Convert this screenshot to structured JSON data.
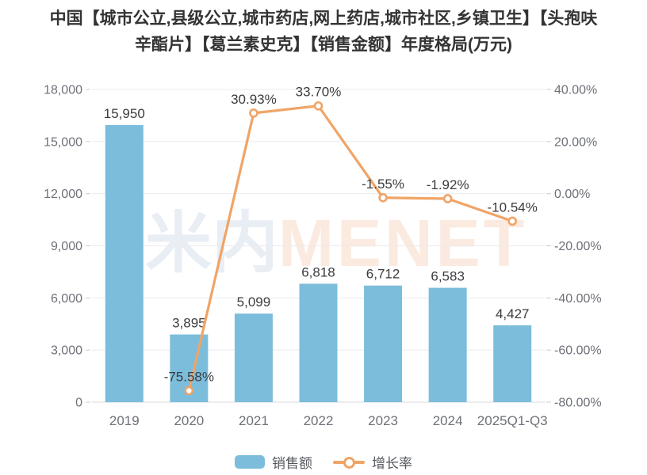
{
  "title": "中国【城市公立,县级公立,城市药店,网上药店,城市社区,乡镇卫生】【头孢呋辛酯片】【葛兰素史克】【销售金额】年度格局(万元)",
  "watermark": {
    "part1": "米内",
    "part2": "MENET"
  },
  "colors": {
    "bar": "#7CBDDB",
    "line": "#F0A467",
    "grid": "#EBEBEE",
    "axis_line": "#D9D9DC",
    "tick": "#CCCCCC",
    "axis_text": "#6E7079",
    "label_text": "#3C3C40",
    "title_text": "#333333",
    "legend_text": "#54575C",
    "watermark_cn": "#E8EEF4",
    "watermark_en": "#FBEADF",
    "marker_fill": "#FFFFFF"
  },
  "chart_data": {
    "type": "bar+line combo",
    "title": "中国【城市公立,县级公立,城市药店,网上药店,城市社区,乡镇卫生】【头孢呋辛酯片】【葛兰素史克】【销售金额】年度格局(万元)",
    "categories": [
      "2019",
      "2020",
      "2021",
      "2022",
      "2023",
      "2024",
      "2025Q1-Q3"
    ],
    "series": [
      {
        "name": "销售额",
        "type": "bar",
        "values": [
          15950,
          3895,
          5099,
          6818,
          6712,
          6583,
          4427
        ],
        "labels": [
          "15,950",
          "3,895",
          "5,099",
          "6,818",
          "6,712",
          "6,583",
          "4,427"
        ]
      },
      {
        "name": "增长率",
        "type": "line",
        "values": [
          null,
          -75.58,
          30.93,
          33.7,
          -1.55,
          -1.92,
          -10.54
        ],
        "labels": [
          null,
          "-75.58%",
          "30.93%",
          "33.70%",
          "-1.55%",
          "-1.92%",
          "-10.54%"
        ]
      }
    ],
    "left_axis": {
      "min": 0,
      "max": 18000,
      "step": 3000,
      "tick_labels": [
        "0",
        "3,000",
        "6,000",
        "9,000",
        "12,000",
        "15,000",
        "18,000"
      ]
    },
    "right_axis": {
      "min": -80,
      "max": 40,
      "step": 20,
      "tick_labels": [
        "-80.00%",
        "-60.00%",
        "-40.00%",
        "-20.00%",
        "0.00%",
        "20.00%",
        "40.00%"
      ]
    },
    "grid": "horizontal only",
    "legend_position": "bottom center"
  }
}
